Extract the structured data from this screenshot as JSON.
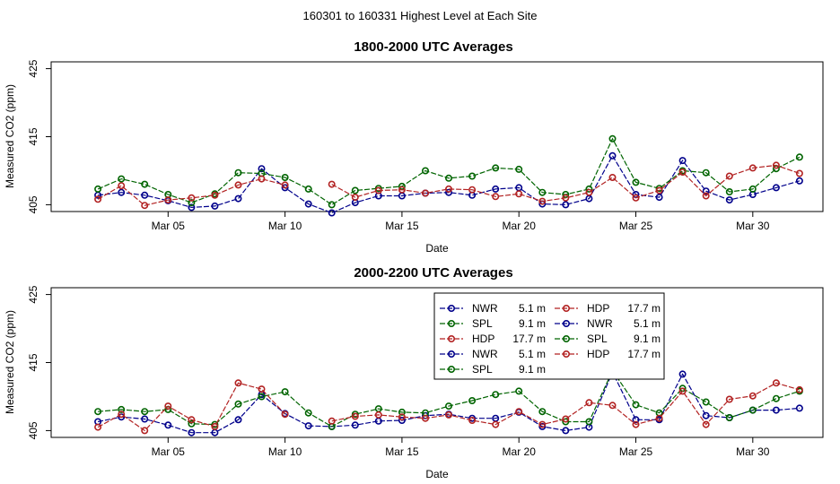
{
  "figure_title": "160301  to  160331 Highest Level at Each Site",
  "colors": {
    "NWR": "#00008b",
    "SPL": "#006400",
    "HDP": "#b22222"
  },
  "chart_data": [
    {
      "type": "line",
      "title": "1800-2000 UTC Averages",
      "xlabel": "Date",
      "ylabel": "Measured CO2 (ppm)",
      "x": [
        2,
        3,
        4,
        5,
        6,
        7,
        8,
        9,
        10,
        11,
        12,
        13,
        14,
        15,
        16,
        17,
        18,
        19,
        20,
        21,
        22,
        23,
        24,
        25,
        26,
        27,
        28,
        29,
        30,
        31,
        32
      ],
      "xlim": [
        0,
        33
      ],
      "ylim": [
        404,
        426
      ],
      "xticks": [
        5,
        10,
        15,
        20,
        25,
        30
      ],
      "xtick_labels": [
        "Mar 05",
        "Mar 10",
        "Mar 15",
        "Mar 20",
        "Mar 25",
        "Mar 30"
      ],
      "yticks": [
        405,
        415,
        425
      ],
      "ytick_labels": [
        "405",
        "415",
        "425"
      ],
      "series": [
        {
          "name": "NWR",
          "height": "5.1 m",
          "color": "#00008b",
          "values": [
            406.4,
            406.8,
            406.4,
            405.6,
            404.6,
            404.8,
            405.9,
            410.3,
            407.5,
            405.1,
            403.8,
            405.3,
            406.3,
            406.3,
            406.7,
            406.8,
            406.4,
            407.3,
            407.5,
            405.1,
            405.0,
            405.9,
            412.2,
            406.5,
            406.1,
            411.5,
            407.0,
            405.7,
            406.5,
            407.5,
            408.5
          ]
        },
        {
          "name": "SPL",
          "height": "9.1 m",
          "color": "#006400",
          "values": [
            407.3,
            408.8,
            408.0,
            406.5,
            405.3,
            406.6,
            409.7,
            409.6,
            409.0,
            407.3,
            405.0,
            407.1,
            407.4,
            407.7,
            410.0,
            408.9,
            409.2,
            410.4,
            410.2,
            406.8,
            406.5,
            407.3,
            414.7,
            408.3,
            407.4,
            410.0,
            409.7,
            406.9,
            407.3,
            410.3,
            412.0
          ]
        },
        {
          "name": "HDP",
          "height": "17.7 m",
          "color": "#b22222",
          "values": [
            405.8,
            407.8,
            404.9,
            405.7,
            406.0,
            406.4,
            407.9,
            408.8,
            407.9,
            null,
            408.0,
            406.1,
            407.1,
            407.2,
            406.7,
            407.3,
            407.2,
            406.2,
            406.6,
            405.5,
            406.0,
            406.8,
            409.0,
            406.0,
            407.1,
            409.8,
            406.3,
            409.2,
            410.4,
            410.8,
            409.6
          ]
        }
      ]
    },
    {
      "type": "line",
      "title": "2000-2200 UTC Averages",
      "xlabel": "Date",
      "ylabel": "Measured CO2 (ppm)",
      "x": [
        2,
        3,
        4,
        5,
        6,
        7,
        8,
        9,
        10,
        11,
        12,
        13,
        14,
        15,
        16,
        17,
        18,
        19,
        20,
        21,
        22,
        23,
        24,
        25,
        26,
        27,
        28,
        29,
        30,
        31,
        32
      ],
      "xlim": [
        0,
        33
      ],
      "ylim": [
        404,
        426
      ],
      "xticks": [
        5,
        10,
        15,
        20,
        25,
        30
      ],
      "xtick_labels": [
        "Mar 05",
        "Mar 10",
        "Mar 15",
        "Mar 20",
        "Mar 25",
        "Mar 30"
      ],
      "yticks": [
        405,
        415,
        425
      ],
      "ytick_labels": [
        "405",
        "415",
        "425"
      ],
      "series": [
        {
          "name": "NWR",
          "height": "5.1 m",
          "color": "#00008b",
          "values": [
            406.3,
            407.0,
            406.7,
            405.8,
            404.7,
            404.7,
            406.6,
            410.3,
            407.5,
            405.7,
            405.6,
            405.8,
            406.4,
            406.5,
            407.2,
            407.4,
            406.8,
            406.8,
            407.7,
            405.6,
            405.0,
            405.5,
            413.6,
            406.6,
            406.6,
            413.3,
            407.2,
            406.9,
            408.0,
            408.0,
            408.3
          ]
        },
        {
          "name": "SPL",
          "height": "9.1 m",
          "color": "#006400",
          "values": [
            407.8,
            408.1,
            407.8,
            408.1,
            406.0,
            405.9,
            408.9,
            410.0,
            410.7,
            407.6,
            405.6,
            407.4,
            408.2,
            407.7,
            407.6,
            408.6,
            409.4,
            410.3,
            410.8,
            407.8,
            406.3,
            406.3,
            413.8,
            408.8,
            407.6,
            411.2,
            409.2,
            406.9,
            408.0,
            409.7,
            410.8
          ]
        },
        {
          "name": "HDP",
          "height": "17.7 m",
          "color": "#b22222",
          "values": [
            405.5,
            407.4,
            405.0,
            408.6,
            406.6,
            405.6,
            412.0,
            411.1,
            407.4,
            null,
            406.4,
            407.1,
            407.3,
            407.0,
            406.8,
            407.3,
            406.5,
            405.9,
            407.8,
            405.9,
            406.7,
            409.1,
            408.7,
            405.9,
            406.8,
            410.8,
            405.9,
            409.6,
            410.1,
            412.0,
            411.0
          ]
        }
      ],
      "legend": {
        "position": "top-right",
        "entries": [
          {
            "name": "NWR",
            "height": "5.1 m",
            "color": "#00008b"
          },
          {
            "name": "SPL",
            "height": "9.1 m",
            "color": "#006400"
          },
          {
            "name": "HDP",
            "height": "17.7 m",
            "color": "#b22222"
          },
          {
            "name": "NWR",
            "height": "5.1 m",
            "color": "#00008b"
          },
          {
            "name": "SPL",
            "height": "9.1 m",
            "color": "#006400"
          },
          {
            "name": "HDP",
            "height": "17.7 m",
            "color": "#b22222"
          },
          {
            "name": "NWR",
            "height": "5.1 m",
            "color": "#00008b"
          },
          {
            "name": "SPL",
            "height": "9.1 m",
            "color": "#006400"
          },
          {
            "name": "HDP",
            "height": "17.7 m",
            "color": "#b22222"
          }
        ]
      }
    }
  ]
}
